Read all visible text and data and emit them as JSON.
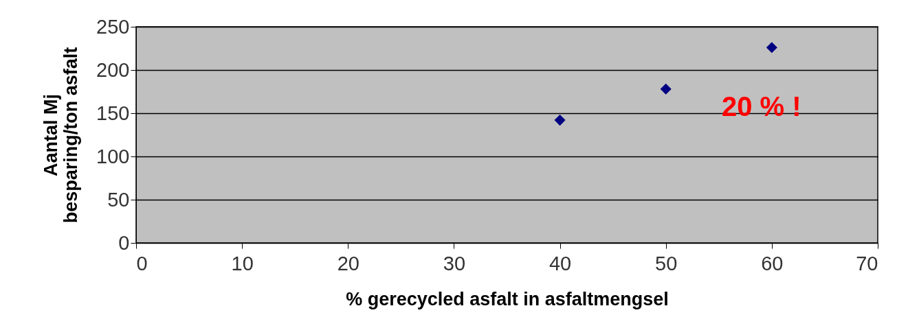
{
  "chart_data": {
    "type": "scatter",
    "xlabel": "% gerecycled asfalt in asfaltmengsel",
    "ylabel": "Aantal Mj\nbesparing/ton asfalt",
    "x": [
      40,
      50,
      60
    ],
    "values": [
      142,
      178,
      226
    ],
    "color": "#000080",
    "marker": "diamond",
    "xlim": [
      0,
      70
    ],
    "xticks": [
      0,
      10,
      20,
      30,
      40,
      50,
      60,
      70
    ],
    "ylim": [
      0,
      250
    ],
    "yticks": [
      0,
      50,
      100,
      150,
      200,
      250
    ],
    "grid": "y",
    "annotations": [
      "20 % !"
    ]
  }
}
